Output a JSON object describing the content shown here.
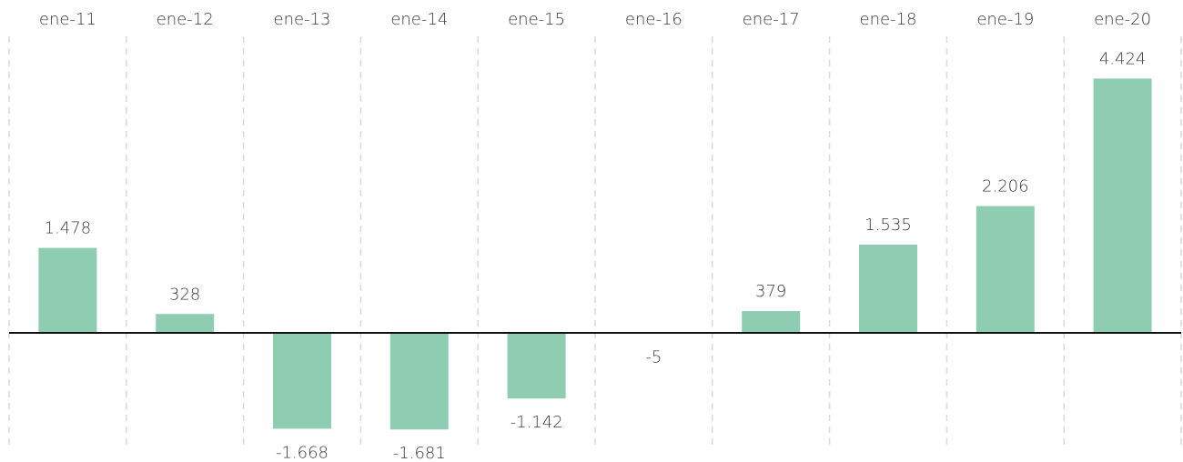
{
  "chart_data": {
    "type": "bar",
    "title": "",
    "xlabel": "",
    "ylabel": "",
    "categories": [
      "ene-11",
      "ene-12",
      "ene-13",
      "ene-14",
      "ene-15",
      "ene-16",
      "ene-17",
      "ene-18",
      "ene-19",
      "ene-20"
    ],
    "values": [
      1478,
      328,
      -1668,
      -1681,
      -1142,
      -5,
      379,
      1535,
      2206,
      4424
    ],
    "value_labels": [
      "1.478",
      "328",
      "-1.668",
      "-1.681",
      "-1.142",
      "-5",
      "379",
      "1.535",
      "2.206",
      "4.424"
    ],
    "ylim": [
      -1900,
      4650
    ],
    "grid": "vertical dashed separators between categories",
    "legend": "none",
    "colors": {
      "bar": "#8fcdb3",
      "zero_line": "#111111",
      "separator": "#d9d9d9",
      "text": "#3a3a3a"
    }
  }
}
